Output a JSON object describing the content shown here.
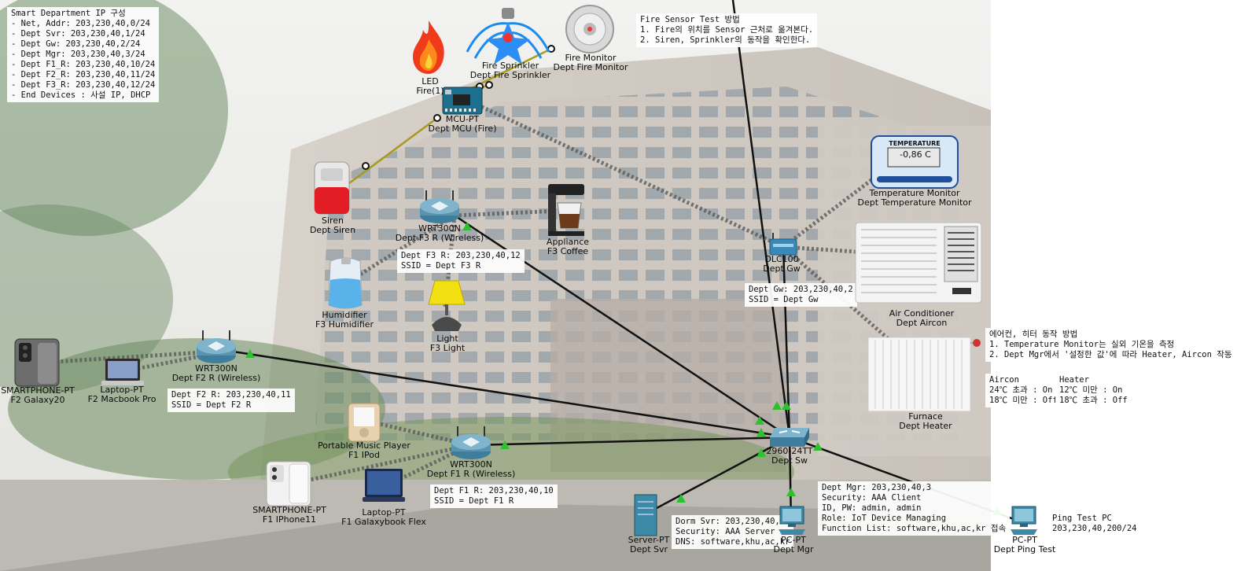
{
  "notes": {
    "ip_plan": [
      "Smart Department IP 구성",
      "- Net, Addr: 203,230,40,0/24",
      "- Dept Svr: 203,230,40,1/24",
      "- Dept Gw: 203,230,40,2/24",
      "- Dept Mgr: 203,230,40,3/24",
      "- Dept F1_R: 203,230,40,10/24",
      "- Dept F2_R: 203,230,40,11/24",
      "- Dept F3_R: 203,230,40,12/24",
      "- End Devices : 사설 IP, DHCP"
    ],
    "fire_test": [
      "Fire Sensor Test 방법",
      "1. Fire의 위치를 Sensor 근처로 옮겨본다.",
      "2. Siren, Sprinkler의 동작을 확인한다."
    ],
    "ac_test": [
      "에어컨, 히터 동작 방법",
      "1. Temperature Monitor는 실외 기온을 측정",
      "2. Dept Mgr에서 '설정한 값'에 따라 Heater, Aircon 작동"
    ],
    "aircon_rule": [
      "Aircon",
      "24℃ 초과 : On",
      "18℃ 미만 : Off"
    ],
    "heater_rule": [
      "Heater",
      "12℃ 미만 : On",
      "18℃ 초과 : Off"
    ],
    "f3_router": [
      "Dept F3 R: 203,230,40,12",
      "SSID = Dept F3 R"
    ],
    "f2_router": [
      "Dept F2 R: 203,230,40,11",
      "SSID = Dept F2 R"
    ],
    "f1_router": [
      "Dept F1 R: 203,230,40,10",
      "SSID = Dept F1 R"
    ],
    "gateway": [
      "Dept Gw: 203,230,40,2",
      "SSID = Dept Gw"
    ],
    "server": [
      "Dorm Svr: 203,230,40,1",
      "Security: AAA Server",
      "DNS: software,khu,ac,kr"
    ],
    "mgr": [
      "Dept Mgr: 203,230,40,3",
      "Security: AAA Client",
      "ID, PW: admin, admin",
      "",
      "Role: IoT Device Managing",
      "Function List: software,khu,ac,kr 접속"
    ],
    "ping": [
      "Ping Test PC",
      "203,230,40,200/24"
    ]
  },
  "temperature_display": {
    "header": "TEMPERATURE",
    "value": "-0,86 C"
  },
  "devices": {
    "led": {
      "type": "LED",
      "name": "Fire(1)"
    },
    "sprinkler": {
      "type": "Fire Sprinkler",
      "name": "Dept Fire Sprinkler"
    },
    "fire_monitor": {
      "type": "Fire Monitor",
      "name": "Dept Fire Monitor"
    },
    "mcu": {
      "type": "MCU-PT",
      "name": "Dept MCU (Fire)"
    },
    "siren": {
      "type": "Siren",
      "name": "Dept Siren"
    },
    "f3_router": {
      "type": "WRT300N",
      "name": "Dept F3 R (Wireless)"
    },
    "coffee": {
      "type": "Appliance",
      "name": "F3 Coffee"
    },
    "humidifier": {
      "type": "Humidifier",
      "name": "F3 Humidifier"
    },
    "light": {
      "type": "Light",
      "name": "F3 Light"
    },
    "temp_monitor": {
      "type": "Temperature Monitor",
      "name": "Dept Temperature Monitor"
    },
    "gateway": {
      "type": "DLC100",
      "name": "Dept Gw"
    },
    "aircon": {
      "type": "Air Conditioner",
      "name": "Dept Aircon"
    },
    "furnace": {
      "type": "Furnace",
      "name": "Dept Heater"
    },
    "f2_router": {
      "type": "WRT300N",
      "name": "Dept F2 R (Wireless)"
    },
    "galaxy20": {
      "type": "SMARTPHONE-PT",
      "name": "F2 Galaxy20"
    },
    "macbook": {
      "type": "Laptop-PT",
      "name": "F2 Macbook Pro"
    },
    "ipod": {
      "type": "Portable Music Player",
      "name": "F1 IPod"
    },
    "f1_router": {
      "type": "WRT300N",
      "name": "Dept F1 R (Wireless)"
    },
    "iphone": {
      "type": "SMARTPHONE-PT",
      "name": "F1 IPhone11"
    },
    "galaxybook": {
      "type": "Laptop-PT",
      "name": "F1 Galaxybook Flex"
    },
    "switch": {
      "type": "2960-24TT",
      "name": "Dept Sw"
    },
    "server": {
      "type": "Server-PT",
      "name": "Dept Svr"
    },
    "mgr_pc": {
      "type": "PC-PT",
      "name": "Dept Mgr"
    },
    "ping_pc": {
      "type": "PC-PT",
      "name": "Dept Ping Test"
    }
  },
  "colors": {
    "ethernet": "#111111",
    "wireless": "#555555",
    "iot_cable": "#a89a1e",
    "port_up": "#2ec02e",
    "router_body": "#5a93ad"
  }
}
